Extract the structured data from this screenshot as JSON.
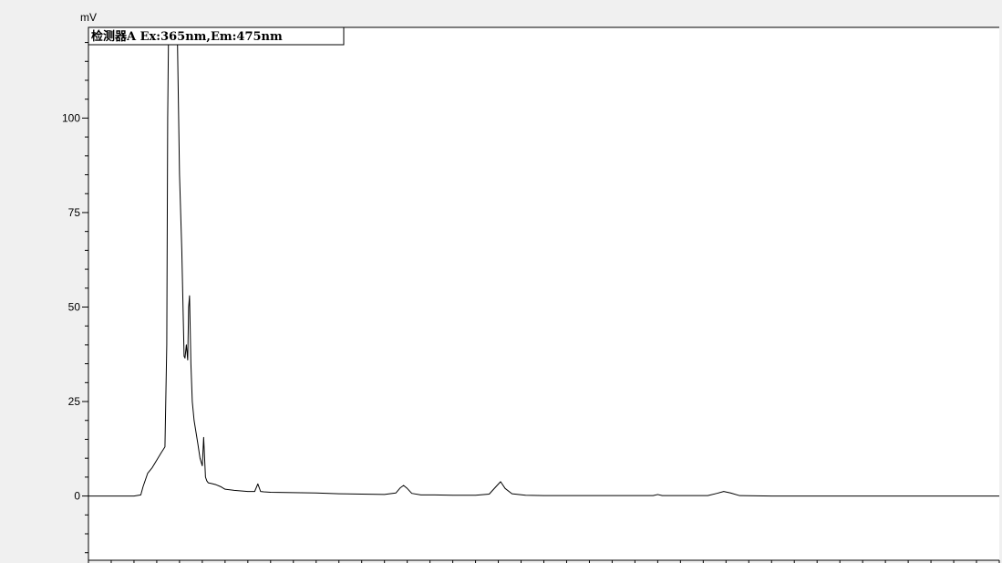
{
  "chart_data": {
    "type": "line",
    "title": "",
    "xlabel": "",
    "ylabel": "mV",
    "legend": "检测器A Ex:365nm,Em:475nm",
    "xlim": [
      0,
      20
    ],
    "ylim": [
      -17,
      124
    ],
    "x_ticks": [
      "0.0",
      "2.5",
      "5.0",
      "7.5",
      "10.0",
      "12.5",
      "15.0",
      "17.5",
      "20"
    ],
    "x_tick_values": [
      0,
      2.5,
      5,
      7.5,
      10,
      12.5,
      15,
      17.5,
      20
    ],
    "y_ticks": [
      "0",
      "25",
      "50",
      "75",
      "100"
    ],
    "y_tick_values": [
      0,
      25,
      50,
      75,
      100
    ],
    "line_color": "#000000",
    "plot_background": "#ffffff",
    "series": [
      {
        "x": [
          0.0,
          0.5,
          1.0,
          1.15,
          1.2,
          1.3,
          1.4,
          1.5,
          1.6,
          1.68,
          1.72,
          1.74,
          1.76,
          1.8,
          1.85,
          1.9,
          1.95,
          2.0,
          2.05,
          2.1,
          2.12,
          2.15,
          2.18,
          2.2,
          2.22,
          2.25,
          2.28,
          2.32,
          2.4,
          2.45,
          2.5,
          2.53,
          2.57,
          2.6,
          2.63,
          2.7,
          2.8,
          2.9,
          3.0,
          3.2,
          3.5,
          3.65,
          3.72,
          3.78,
          3.85,
          4.0,
          4.5,
          5.0,
          5.5,
          6.0,
          6.5,
          6.75,
          6.85,
          6.92,
          7.0,
          7.1,
          7.3,
          7.6,
          8.0,
          8.5,
          8.8,
          8.95,
          9.05,
          9.15,
          9.3,
          9.6,
          10.0,
          11.0,
          12.0,
          12.4,
          12.5,
          12.6,
          13.0,
          13.6,
          13.8,
          13.95,
          14.1,
          14.3,
          15.0,
          17.5,
          20.0
        ],
        "y": [
          0.0,
          0.0,
          0.0,
          0.3,
          2.5,
          6.0,
          7.5,
          9.5,
          11.5,
          13.0,
          40.0,
          100.0,
          124.0,
          124.0,
          124.0,
          124.0,
          124.0,
          85.0,
          65.0,
          37.0,
          36.5,
          40.0,
          36.0,
          50.0,
          53.0,
          35.0,
          25.0,
          20.0,
          14.0,
          10.0,
          8.0,
          15.5,
          5.0,
          4.0,
          3.5,
          3.3,
          3.0,
          2.5,
          1.8,
          1.5,
          1.2,
          1.2,
          3.2,
          1.2,
          1.1,
          1.0,
          0.9,
          0.8,
          0.6,
          0.5,
          0.4,
          0.8,
          2.2,
          2.8,
          2.0,
          0.7,
          0.3,
          0.3,
          0.2,
          0.2,
          0.5,
          2.5,
          3.8,
          2.0,
          0.6,
          0.2,
          0.1,
          0.1,
          0.1,
          0.1,
          0.4,
          0.1,
          0.1,
          0.1,
          0.7,
          1.2,
          0.8,
          0.1,
          0.0,
          0.0,
          0.0
        ]
      }
    ]
  }
}
